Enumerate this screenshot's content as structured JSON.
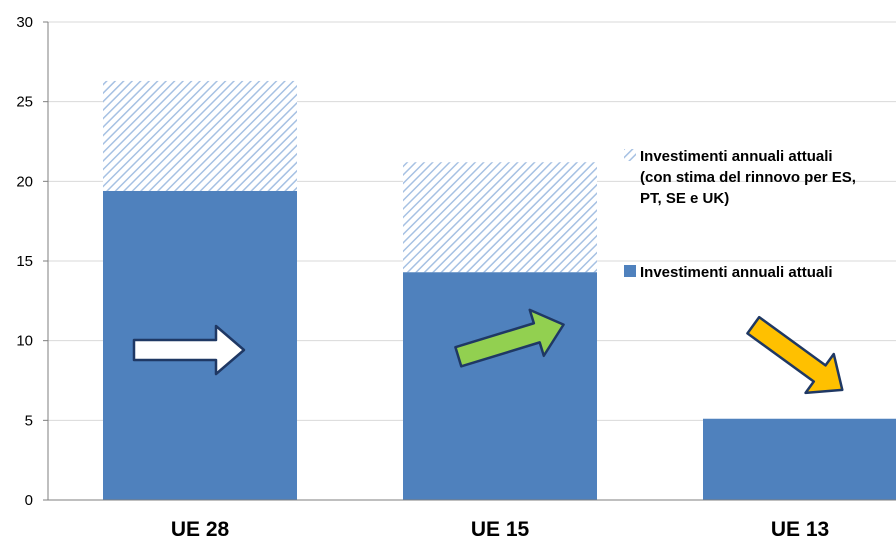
{
  "chart_data": {
    "type": "bar",
    "stacked": true,
    "categories": [
      "UE 28",
      "UE 15",
      "UE 13"
    ],
    "series": [
      {
        "name": "Investimenti annuali attuali",
        "values": [
          19.4,
          14.3,
          5.1
        ],
        "color": "#4f81bd",
        "pattern": "solid"
      },
      {
        "name": "Investimenti annuali attuali (con stima del rinnovo per ES, PT, SE e UK)",
        "name_lines": [
          "Investimenti annuali attuali",
          "(con stima del rinnovo per ES,",
          "PT, SE e UK)"
        ],
        "values": [
          6.9,
          6.9,
          0
        ],
        "color": "#a6c1e3",
        "pattern": "diagonal-hatch"
      }
    ],
    "trend_arrows": [
      {
        "category": "UE 28",
        "direction": "flat",
        "color": "#ffffff"
      },
      {
        "category": "UE 15",
        "direction": "up",
        "color": "#92d050"
      },
      {
        "category": "UE 13",
        "direction": "down",
        "color": "#ffc000"
      }
    ],
    "yticks": [
      0,
      5,
      10,
      15,
      20,
      25,
      30
    ],
    "ylim": [
      0,
      30
    ],
    "grid": true,
    "legend_position": "right"
  }
}
